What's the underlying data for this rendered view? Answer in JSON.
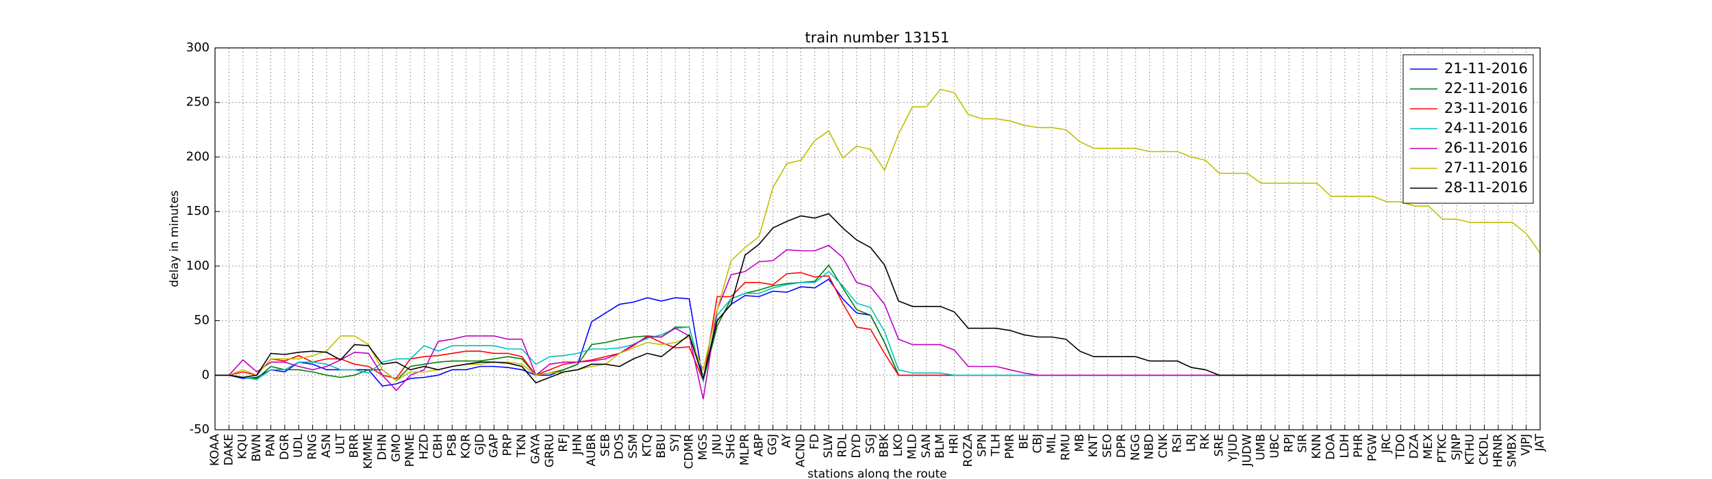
{
  "chart_data": {
    "type": "line",
    "title": "train number 13151",
    "x_label": "stations along the route",
    "y_label": "delay in minutes",
    "categories": [
      "KOAA",
      "DAKE",
      "KQU",
      "BWN",
      "PAN",
      "DGR",
      "UDL",
      "RNG",
      "ASN",
      "ULT",
      "BRR",
      "KMME",
      "DHN",
      "GMO",
      "PNME",
      "HZD",
      "CBH",
      "PSB",
      "KQR",
      "GJD",
      "GAP",
      "PRP",
      "TKN",
      "GAYA",
      "GRRU",
      "RFJ",
      "JHN",
      "AUBR",
      "SEB",
      "DOS",
      "SSM",
      "KTQ",
      "BBU",
      "SYJ",
      "CDMR",
      "MGS",
      "JNU",
      "SHG",
      "MLPR",
      "ABP",
      "GGJ",
      "AY",
      "ACND",
      "FD",
      "SLW",
      "RDL",
      "DYD",
      "SGJ",
      "BBK",
      "LKO",
      "MLD",
      "SAN",
      "BLM",
      "HRI",
      "ROZA",
      "SPN",
      "TLH",
      "PMR",
      "BE",
      "CBJ",
      "MIL",
      "RMU",
      "MB",
      "KNT",
      "SEO",
      "DPR",
      "NGG",
      "NBD",
      "CNK",
      "RSI",
      "LRJ",
      "RK",
      "SRE",
      "YJUD",
      "JUDW",
      "UMB",
      "UBC",
      "RPJ",
      "SIR",
      "KNN",
      "DOA",
      "LDH",
      "PHR",
      "PGW",
      "JRC",
      "TDO",
      "DZA",
      "MEX",
      "PTKC",
      "SJNP",
      "KTHU",
      "CKDL",
      "HRNR",
      "SMBX",
      "VJPJ",
      "JAT"
    ],
    "ylim": [
      -50,
      300
    ],
    "yticks": [
      -50,
      0,
      50,
      100,
      150,
      200,
      250,
      300
    ],
    "grid": true,
    "legend": "upper right",
    "series": [
      {
        "name": "21-11-2016",
        "color": "#0000ff",
        "values": [
          0,
          0,
          -3,
          -2,
          5,
          3,
          12,
          10,
          5,
          5,
          5,
          5,
          -10,
          -8,
          -3,
          -2,
          0,
          5,
          5,
          8,
          8,
          7,
          5,
          0,
          0,
          5,
          10,
          49,
          57,
          65,
          67,
          71,
          68,
          71,
          70,
          -5,
          50,
          65,
          73,
          72,
          77,
          76,
          81,
          80,
          88,
          70,
          57,
          55,
          30,
          0,
          0,
          0,
          0,
          0,
          0,
          0,
          0,
          0,
          0,
          0,
          0,
          0,
          0,
          0,
          0,
          0,
          0,
          0,
          0,
          0,
          0,
          0,
          0,
          0,
          0,
          0,
          0,
          0,
          0,
          0,
          0,
          0,
          0,
          0,
          0,
          0,
          0,
          0,
          0,
          0,
          0,
          0,
          0,
          0,
          0,
          0
        ]
      },
      {
        "name": "22-11-2016",
        "color": "#008000",
        "values": [
          0,
          0,
          -2,
          -3,
          8,
          5,
          5,
          3,
          0,
          -2,
          0,
          5,
          5,
          -5,
          8,
          10,
          12,
          13,
          13,
          13,
          15,
          17,
          15,
          0,
          2,
          5,
          10,
          28,
          30,
          33,
          35,
          36,
          35,
          44,
          44,
          -5,
          45,
          70,
          75,
          78,
          82,
          84,
          85,
          86,
          101,
          80,
          60,
          55,
          30,
          0,
          0,
          0,
          0,
          0,
          0,
          0,
          0,
          0,
          0,
          0,
          0,
          0,
          0,
          0,
          0,
          0,
          0,
          0,
          0,
          0,
          0,
          0,
          0,
          0,
          0,
          0,
          0,
          0,
          0,
          0,
          0,
          0,
          0,
          0,
          0,
          0,
          0,
          0,
          0,
          0,
          0,
          0,
          0,
          0,
          0,
          0
        ]
      },
      {
        "name": "23-11-2016",
        "color": "#ff0000",
        "values": [
          0,
          0,
          3,
          0,
          15,
          13,
          18,
          12,
          15,
          15,
          10,
          8,
          0,
          -3,
          15,
          17,
          18,
          20,
          22,
          22,
          20,
          20,
          17,
          0,
          5,
          10,
          12,
          14,
          17,
          20,
          27,
          36,
          30,
          25,
          26,
          -5,
          72,
          72,
          85,
          85,
          83,
          93,
          94,
          90,
          91,
          66,
          44,
          42,
          20,
          0,
          0,
          0,
          0,
          0,
          0,
          0,
          0,
          0,
          0,
          0,
          0,
          0,
          0,
          0,
          0,
          0,
          0,
          0,
          0,
          0,
          0,
          0,
          0,
          0,
          0,
          0,
          0,
          0,
          0,
          0,
          0,
          0,
          0,
          0,
          0,
          0,
          0,
          0,
          0,
          0,
          0,
          0,
          0,
          0,
          0,
          0
        ]
      },
      {
        "name": "24-11-2016",
        "color": "#00bfbf",
        "values": [
          0,
          0,
          -2,
          -4,
          5,
          5,
          12,
          12,
          10,
          5,
          5,
          2,
          12,
          15,
          15,
          27,
          22,
          27,
          27,
          27,
          27,
          24,
          24,
          10,
          17,
          18,
          20,
          24,
          24,
          25,
          28,
          34,
          37,
          43,
          44,
          -5,
          55,
          70,
          75,
          75,
          80,
          83,
          85,
          85,
          95,
          82,
          66,
          62,
          40,
          5,
          2,
          2,
          2,
          0,
          0,
          0,
          0,
          0,
          0,
          0,
          0,
          0,
          0,
          0,
          0,
          0,
          0,
          0,
          0,
          0,
          0,
          0,
          0,
          0,
          0,
          0,
          0,
          0,
          0,
          0,
          0,
          0,
          0,
          0,
          0,
          0,
          0,
          0,
          0,
          0,
          0,
          0,
          0,
          0,
          0,
          0
        ]
      },
      {
        "name": "26-11-2016",
        "color": "#bf00bf",
        "values": [
          0,
          0,
          14,
          3,
          12,
          12,
          8,
          5,
          8,
          14,
          21,
          20,
          0,
          -14,
          0,
          5,
          31,
          33,
          36,
          36,
          36,
          33,
          33,
          0,
          10,
          12,
          12,
          13,
          15,
          20,
          28,
          35,
          35,
          43,
          36,
          -22,
          60,
          92,
          95,
          104,
          105,
          115,
          114,
          114,
          119,
          108,
          85,
          81,
          65,
          33,
          28,
          28,
          28,
          23,
          8,
          8,
          8,
          5,
          2,
          0,
          0,
          0,
          0,
          0,
          0,
          0,
          0,
          0,
          0,
          0,
          0,
          0,
          0,
          0,
          0,
          0,
          0,
          0,
          0,
          0,
          0,
          0,
          0,
          0,
          0,
          0,
          0,
          0,
          0,
          0,
          0,
          0,
          0,
          0,
          0,
          0
        ]
      },
      {
        "name": "27-11-2016",
        "color": "#bfbf00",
        "values": [
          0,
          0,
          5,
          0,
          15,
          15,
          15,
          18,
          22,
          36,
          36,
          28,
          5,
          -5,
          3,
          3,
          5,
          8,
          10,
          10,
          12,
          12,
          10,
          0,
          2,
          3,
          5,
          8,
          10,
          20,
          25,
          30,
          28,
          30,
          35,
          5,
          60,
          105,
          117,
          127,
          172,
          194,
          197,
          215,
          224,
          199,
          210,
          207,
          188,
          221,
          246,
          246,
          262,
          259,
          239,
          235,
          235,
          233,
          229,
          227,
          227,
          225,
          214,
          208,
          208,
          208,
          208,
          205,
          205,
          205,
          200,
          197,
          185,
          185,
          185,
          176,
          176,
          176,
          176,
          176,
          164,
          164,
          164,
          164,
          159,
          159,
          155,
          155,
          143,
          143,
          140,
          140,
          140,
          140,
          130,
          112
        ]
      },
      {
        "name": "28-11-2016",
        "color": "#000000",
        "values": [
          0,
          0,
          -2,
          0,
          20,
          19,
          21,
          22,
          21,
          14,
          28,
          27,
          10,
          12,
          5,
          8,
          5,
          8,
          10,
          12,
          12,
          11,
          8,
          -7,
          -2,
          3,
          5,
          10,
          10,
          8,
          15,
          20,
          17,
          27,
          37,
          -3,
          50,
          65,
          110,
          120,
          135,
          141,
          146,
          144,
          148,
          135,
          124,
          117,
          101,
          68,
          63,
          63,
          63,
          58,
          43,
          43,
          43,
          41,
          37,
          35,
          35,
          33,
          22,
          17,
          17,
          17,
          17,
          13,
          13,
          13,
          7,
          5,
          0,
          0,
          0,
          0,
          0,
          0,
          0,
          0,
          0,
          0,
          0,
          0,
          0,
          0,
          0,
          0,
          0,
          0,
          0,
          0,
          0,
          0,
          0,
          0
        ]
      }
    ]
  }
}
